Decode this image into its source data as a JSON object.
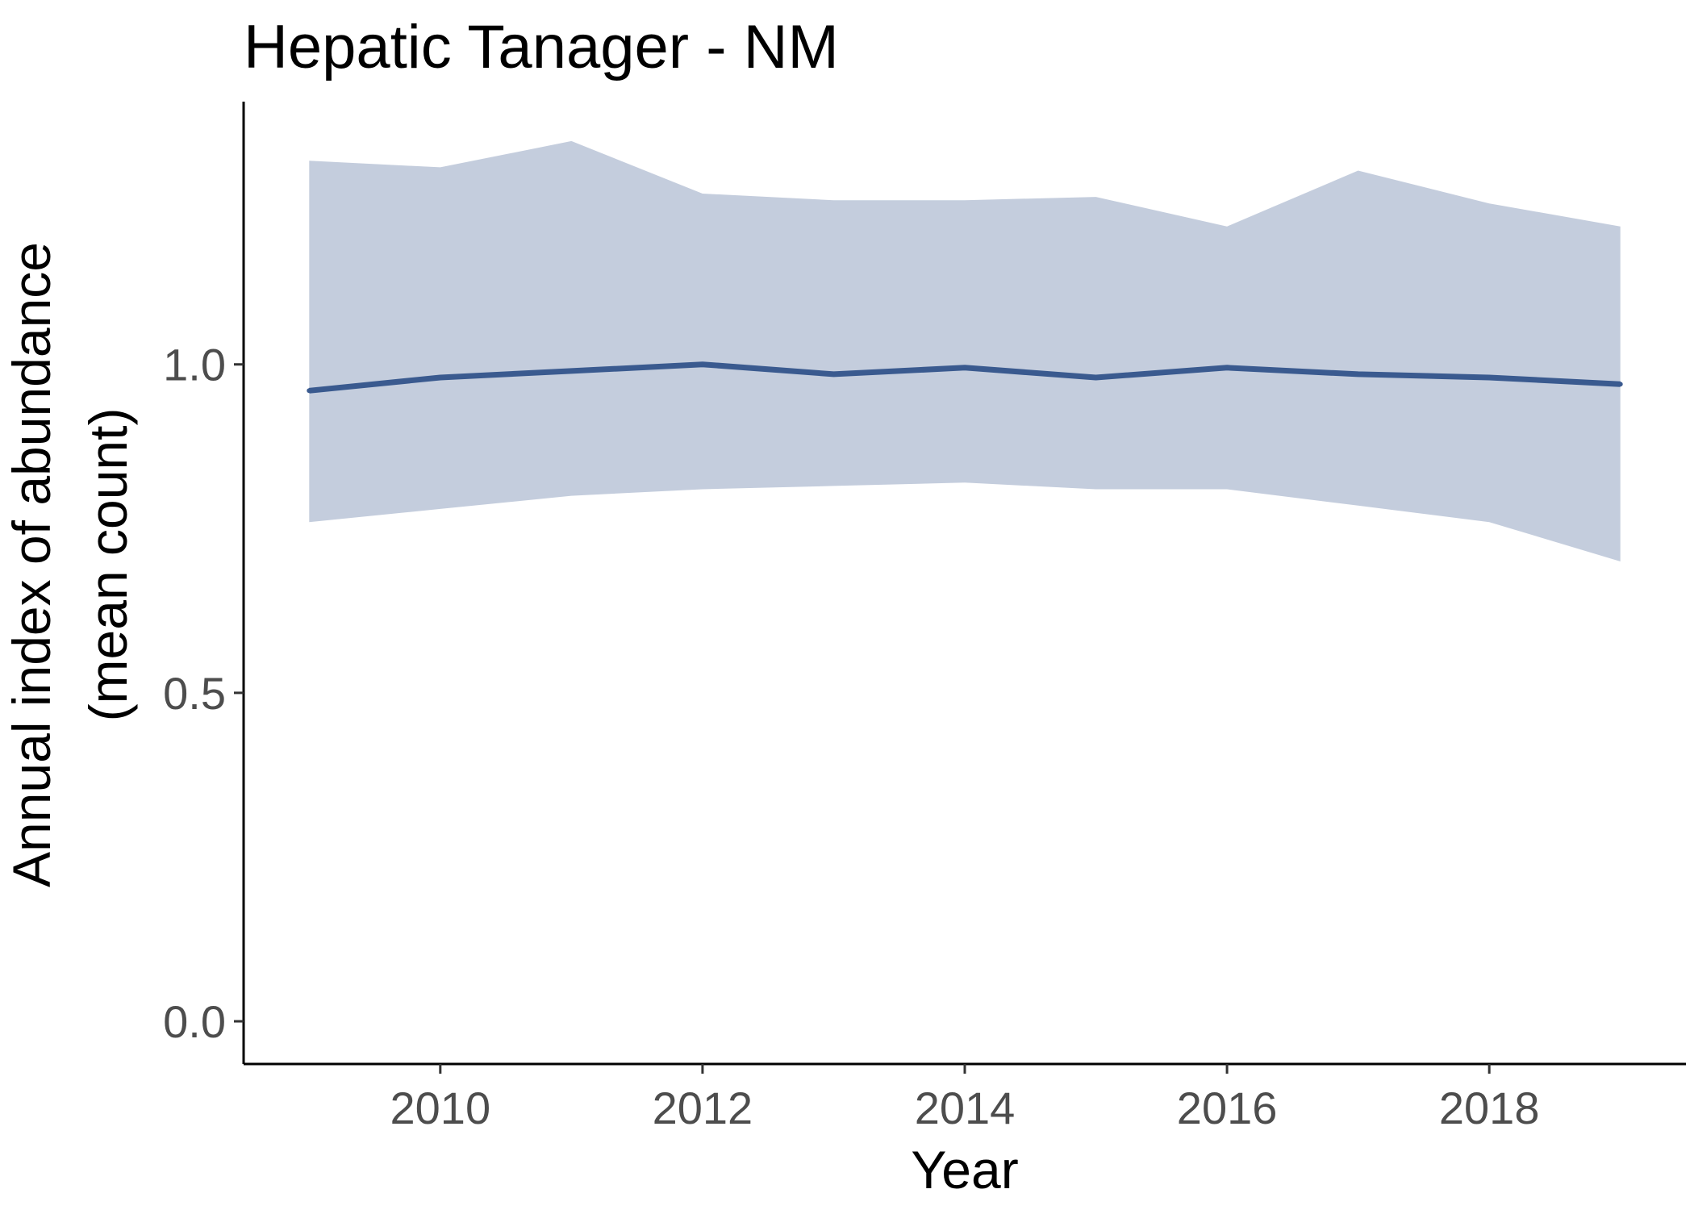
{
  "chart_data": {
    "type": "line",
    "title": "Hepatic Tanager - NM",
    "xlabel": "Year",
    "ylabel_lines": [
      "Annual index of abundance",
      "(mean count)"
    ],
    "x": [
      2009,
      2010,
      2011,
      2012,
      2013,
      2014,
      2015,
      2016,
      2017,
      2018,
      2019
    ],
    "series": [
      {
        "values": [
          0.96,
          0.98,
          0.99,
          1.0,
          0.985,
          0.995,
          0.98,
          0.995,
          0.985,
          0.98,
          0.97
        ],
        "lower": [
          0.76,
          0.78,
          0.8,
          0.81,
          0.815,
          0.82,
          0.81,
          0.81,
          0.785,
          0.76,
          0.7
        ],
        "upper": [
          1.31,
          1.3,
          1.34,
          1.26,
          1.25,
          1.25,
          1.255,
          1.21,
          1.295,
          1.245,
          1.21
        ]
      }
    ],
    "xlim": [
      2008.5,
      2019.5
    ],
    "ylim": [
      -0.065,
      1.4
    ],
    "xticks": [
      2010,
      2012,
      2014,
      2016,
      2018
    ],
    "xtick_labels": [
      "2010",
      "2012",
      "2014",
      "2016",
      "2018"
    ],
    "yticks": [
      0.0,
      0.5,
      1.0
    ],
    "ytick_labels": [
      "0.0",
      "0.5",
      "1.0"
    ],
    "colors": {
      "line": "#3a5a8f",
      "ribbon": "#c4cddd"
    },
    "grid": false,
    "legend": "none"
  }
}
